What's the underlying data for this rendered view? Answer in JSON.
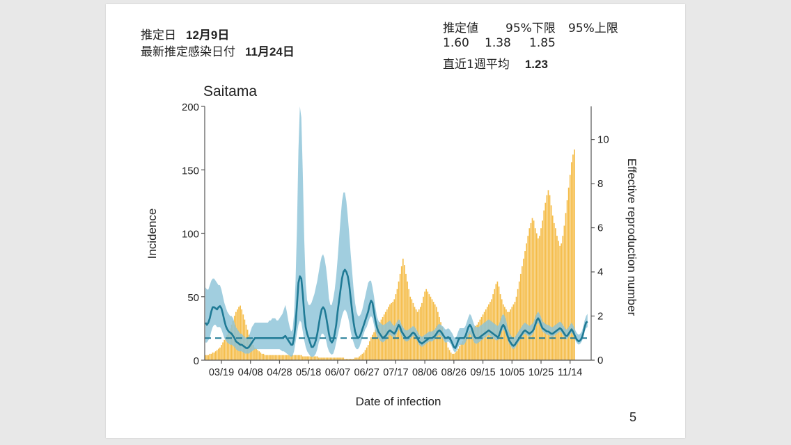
{
  "header": {
    "estimate_date_label": "推定日",
    "estimate_date_value": "12月9日",
    "latest_infection_label": "最新推定感染日付",
    "latest_infection_value": "11月24日"
  },
  "estimate": {
    "col_value": "推定値",
    "col_lower": "95%下限",
    "col_upper": "95%上限",
    "value": "1.60",
    "lower": "1.38",
    "upper": "1.85",
    "week_avg_label": "直近1週平均",
    "week_avg_value": "1.23"
  },
  "page_number": "5",
  "colors": {
    "bars": "#f5bd4a",
    "band": "#8cc3d8",
    "band_inner": "#5a9aa6",
    "line": "#1f7a95",
    "ref_line": "#1f7a95"
  },
  "chart_data": {
    "type": "bar+line",
    "title": "Saitama",
    "xlabel": "Date of infection",
    "ylabel": "Incidence",
    "ylabel_right": "Effective reproduction number",
    "ylim": [
      0,
      200
    ],
    "ylim_right": [
      0,
      11.5
    ],
    "yticks": [
      "0",
      "50",
      "100",
      "150",
      "200"
    ],
    "yticks_right": [
      "0",
      "2",
      "4",
      "6",
      "8",
      "10"
    ],
    "x_tick_labels": [
      "03/19",
      "04/08",
      "04/28",
      "05/18",
      "06/07",
      "06/27",
      "07/17",
      "08/06",
      "08/26",
      "09/15",
      "10/05",
      "10/25",
      "11/14"
    ],
    "x_tick_days": [
      11,
      31,
      51,
      71,
      91,
      111,
      131,
      151,
      171,
      191,
      211,
      231,
      251
    ],
    "n_days": 266,
    "reference_line_rt": 1.0,
    "incidence": [
      4,
      4,
      4,
      5,
      5,
      6,
      6,
      7,
      8,
      9,
      10,
      12,
      14,
      16,
      18,
      20,
      22,
      25,
      28,
      31,
      35,
      38,
      40,
      42,
      43,
      40,
      36,
      32,
      28,
      24,
      20,
      17,
      14,
      12,
      10,
      9,
      8,
      7,
      6,
      5,
      5,
      4,
      4,
      4,
      4,
      4,
      4,
      4,
      4,
      4,
      4,
      4,
      4,
      4,
      4,
      4,
      4,
      4,
      4,
      4,
      4,
      4,
      4,
      4,
      4,
      4,
      4,
      3,
      3,
      3,
      3,
      3,
      3,
      3,
      3,
      3,
      3,
      3,
      2,
      2,
      2,
      2,
      2,
      2,
      2,
      2,
      2,
      2,
      2,
      2,
      2,
      2,
      2,
      2,
      2,
      2,
      1,
      1,
      1,
      1,
      1,
      1,
      1,
      2,
      2,
      2,
      3,
      4,
      5,
      6,
      8,
      10,
      12,
      15,
      18,
      20,
      22,
      24,
      26,
      28,
      30,
      32,
      34,
      36,
      38,
      40,
      42,
      44,
      45,
      46,
      48,
      52,
      56,
      62,
      68,
      74,
      80,
      75,
      68,
      62,
      56,
      50,
      48,
      45,
      42,
      40,
      38,
      40,
      42,
      45,
      50,
      54,
      56,
      54,
      52,
      50,
      48,
      46,
      44,
      42,
      38,
      34,
      30,
      26,
      22,
      18,
      14,
      10,
      8,
      6,
      5,
      5,
      6,
      7,
      9,
      11,
      13,
      15,
      17,
      19,
      21,
      22,
      23,
      24,
      25,
      26,
      27,
      28,
      30,
      32,
      34,
      36,
      38,
      40,
      42,
      44,
      46,
      48,
      52,
      56,
      60,
      62,
      58,
      52,
      48,
      44,
      42,
      40,
      38,
      38,
      40,
      42,
      44,
      46,
      50,
      56,
      62,
      68,
      74,
      80,
      86,
      92,
      98,
      104,
      108,
      112,
      110,
      104,
      100,
      96,
      98,
      104,
      110,
      118,
      124,
      130,
      134,
      130,
      122,
      114,
      108,
      104,
      98,
      94,
      90,
      92,
      98,
      106,
      116,
      126,
      136,
      146,
      156,
      162,
      166
    ],
    "rt_median": [
      1.7,
      1.6,
      1.7,
      1.9,
      2.2,
      2.4,
      2.4,
      2.35,
      2.3,
      2.4,
      2.45,
      2.35,
      2.1,
      1.8,
      1.55,
      1.4,
      1.3,
      1.25,
      1.2,
      1.1,
      1.0,
      0.85,
      0.8,
      0.75,
      0.7,
      0.7,
      0.65,
      0.6,
      0.55,
      0.55,
      0.6,
      0.7,
      0.8,
      0.9,
      1.0,
      1.0,
      1.0,
      1.0,
      1.0,
      1.0,
      1.0,
      1.0,
      1.0,
      1.0,
      1.0,
      1.0,
      1.0,
      1.0,
      1.0,
      1.0,
      1.0,
      1.0,
      1.0,
      1.0,
      1.05,
      1.1,
      1.0,
      0.9,
      0.8,
      0.7,
      0.7,
      1.0,
      1.6,
      2.5,
      3.5,
      3.8,
      3.7,
      3.0,
      2.1,
      1.5,
      1.2,
      1.0,
      0.8,
      0.6,
      0.6,
      0.7,
      0.9,
      1.2,
      1.6,
      2.0,
      2.3,
      2.4,
      2.3,
      2.0,
      1.6,
      1.2,
      0.9,
      0.8,
      0.9,
      1.2,
      1.6,
      2.2,
      2.7,
      3.2,
      3.7,
      4.0,
      4.1,
      4.0,
      3.8,
      3.4,
      2.8,
      2.2,
      1.7,
      1.3,
      1.1,
      1.0,
      1.05,
      1.2,
      1.4,
      1.6,
      1.8,
      2.0,
      2.2,
      2.5,
      2.7,
      2.6,
      2.2,
      1.8,
      1.5,
      1.3,
      1.2,
      1.1,
      1.0,
      1.05,
      1.1,
      1.2,
      1.3,
      1.35,
      1.3,
      1.25,
      1.2,
      1.3,
      1.45,
      1.6,
      1.5,
      1.3,
      1.2,
      1.1,
      1.0,
      1.0,
      1.05,
      1.1,
      1.2,
      1.25,
      1.2,
      1.1,
      1.0,
      0.85,
      0.8,
      0.75,
      0.8,
      0.85,
      0.9,
      0.95,
      1.0,
      1.0,
      1.0,
      1.05,
      1.1,
      1.2,
      1.3,
      1.35,
      1.3,
      1.2,
      1.1,
      1.0,
      1.0,
      1.05,
      1.0,
      0.9,
      0.75,
      0.6,
      0.55,
      0.7,
      0.9,
      1.0,
      1.0,
      1.0,
      1.0,
      1.1,
      1.3,
      1.5,
      1.6,
      1.5,
      1.3,
      1.1,
      1.0,
      1.0,
      1.0,
      1.05,
      1.1,
      1.15,
      1.2,
      1.25,
      1.3,
      1.35,
      1.3,
      1.25,
      1.2,
      1.15,
      1.1,
      1.05,
      1.1,
      1.3,
      1.5,
      1.6,
      1.5,
      1.3,
      1.1,
      0.9,
      0.8,
      0.7,
      0.65,
      0.7,
      0.8,
      0.9,
      1.0,
      1.1,
      1.2,
      1.3,
      1.35,
      1.3,
      1.25,
      1.2,
      1.25,
      1.3,
      1.4,
      1.6,
      1.8,
      1.9,
      1.8,
      1.6,
      1.45,
      1.4,
      1.35,
      1.3,
      1.3,
      1.25,
      1.2,
      1.2,
      1.25,
      1.3,
      1.35,
      1.4,
      1.45,
      1.4,
      1.3,
      1.2,
      1.1,
      1.1,
      1.2,
      1.3,
      1.4,
      1.3,
      1.15,
      1.0,
      0.9,
      0.85,
      0.9,
      1.0,
      1.2,
      1.5,
      1.7,
      1.75
    ],
    "rt_lower": [
      0.8,
      0.8,
      0.9,
      1.0,
      1.3,
      1.5,
      1.6,
      1.6,
      1.5,
      1.5,
      1.5,
      1.4,
      1.2,
      1.0,
      0.9,
      0.8,
      0.75,
      0.7,
      0.7,
      0.65,
      0.6,
      0.5,
      0.45,
      0.4,
      0.4,
      0.4,
      0.35,
      0.3,
      0.3,
      0.3,
      0.3,
      0.35,
      0.4,
      0.45,
      0.5,
      0.5,
      0.5,
      0.5,
      0.5,
      0.5,
      0.5,
      0.5,
      0.5,
      0.5,
      0.5,
      0.5,
      0.5,
      0.5,
      0.5,
      0.5,
      0.5,
      0.5,
      0.45,
      0.4,
      0.4,
      0.35,
      0.3,
      0.25,
      0.2,
      0.15,
      0.2,
      0.4,
      0.8,
      1.2,
      1.6,
      1.8,
      1.7,
      1.3,
      0.9,
      0.6,
      0.4,
      0.3,
      0.2,
      0.15,
      0.15,
      0.2,
      0.3,
      0.5,
      0.8,
      1.0,
      1.2,
      1.2,
      1.1,
      0.9,
      0.6,
      0.4,
      0.3,
      0.25,
      0.3,
      0.5,
      0.8,
      1.1,
      1.4,
      1.7,
      2.0,
      2.2,
      2.3,
      2.2,
      2.0,
      1.7,
      1.3,
      1.0,
      0.8,
      0.6,
      0.5,
      0.5,
      0.6,
      0.8,
      1.0,
      1.2,
      1.4,
      1.5,
      1.7,
      1.9,
      2.0,
      1.9,
      1.6,
      1.3,
      1.1,
      1.0,
      0.9,
      0.85,
      0.8,
      0.85,
      0.9,
      1.0,
      1.1,
      1.15,
      1.1,
      1.05,
      1.0,
      1.1,
      1.25,
      1.4,
      1.3,
      1.1,
      1.0,
      0.9,
      0.85,
      0.85,
      0.9,
      0.95,
      1.05,
      1.1,
      1.05,
      0.95,
      0.85,
      0.7,
      0.65,
      0.6,
      0.65,
      0.7,
      0.75,
      0.8,
      0.85,
      0.85,
      0.85,
      0.9,
      0.95,
      1.05,
      1.1,
      1.15,
      1.1,
      1.0,
      0.9,
      0.8,
      0.8,
      0.85,
      0.8,
      0.7,
      0.55,
      0.4,
      0.35,
      0.45,
      0.6,
      0.7,
      0.7,
      0.7,
      0.7,
      0.8,
      0.95,
      1.1,
      1.2,
      1.1,
      0.95,
      0.8,
      0.75,
      0.75,
      0.8,
      0.85,
      0.9,
      0.95,
      1.0,
      1.05,
      1.1,
      1.15,
      1.1,
      1.05,
      1.0,
      0.95,
      0.9,
      0.9,
      0.95,
      1.1,
      1.3,
      1.4,
      1.3,
      1.1,
      0.95,
      0.75,
      0.65,
      0.55,
      0.5,
      0.55,
      0.65,
      0.75,
      0.85,
      0.95,
      1.05,
      1.15,
      1.2,
      1.15,
      1.1,
      1.05,
      1.1,
      1.15,
      1.25,
      1.45,
      1.6,
      1.7,
      1.6,
      1.45,
      1.3,
      1.25,
      1.2,
      1.15,
      1.15,
      1.1,
      1.05,
      1.05,
      1.1,
      1.15,
      1.2,
      1.25,
      1.3,
      1.25,
      1.15,
      1.05,
      0.95,
      0.95,
      1.05,
      1.15,
      1.25,
      1.15,
      1.0,
      0.85,
      0.75,
      0.7,
      0.75,
      0.85,
      1.0,
      1.3,
      1.45,
      1.5
    ],
    "rt_upper": [
      3.3,
      3.2,
      3.2,
      3.4,
      3.6,
      3.7,
      3.7,
      3.6,
      3.5,
      3.4,
      3.4,
      3.2,
      2.9,
      2.6,
      2.4,
      2.2,
      2.1,
      2.0,
      2.0,
      1.9,
      1.7,
      1.5,
      1.4,
      1.3,
      1.2,
      1.2,
      1.1,
      1.05,
      1.0,
      1.0,
      1.1,
      1.3,
      1.5,
      1.6,
      1.7,
      1.7,
      1.7,
      1.7,
      1.7,
      1.7,
      1.7,
      1.7,
      1.7,
      1.7,
      1.8,
      1.8,
      1.9,
      1.9,
      1.9,
      1.8,
      1.8,
      1.9,
      2.0,
      2.1,
      2.3,
      2.5,
      2.2,
      1.8,
      1.5,
      1.3,
      1.4,
      2.1,
      3.5,
      6.0,
      9.5,
      11.5,
      11.0,
      8.5,
      5.5,
      3.5,
      2.7,
      2.5,
      2.5,
      2.6,
      2.8,
      3.0,
      3.3,
      3.6,
      4.0,
      4.4,
      4.7,
      4.8,
      4.6,
      4.2,
      3.6,
      2.8,
      2.5,
      2.5,
      2.8,
      3.2,
      3.8,
      4.6,
      5.5,
      6.4,
      7.2,
      7.6,
      7.6,
      7.2,
      6.5,
      5.7,
      4.8,
      4.0,
      3.2,
      2.6,
      2.2,
      2.0,
      2.0,
      2.1,
      2.3,
      2.6,
      2.9,
      3.2,
      3.5,
      3.6,
      3.6,
      3.3,
      2.9,
      2.4,
      2.0,
      1.8,
      1.7,
      1.65,
      1.6,
      1.6,
      1.65,
      1.7,
      1.75,
      1.8,
      1.7,
      1.6,
      1.55,
      1.65,
      1.75,
      1.85,
      1.8,
      1.6,
      1.5,
      1.4,
      1.35,
      1.35,
      1.4,
      1.45,
      1.5,
      1.55,
      1.5,
      1.4,
      1.3,
      1.15,
      1.1,
      1.05,
      1.1,
      1.15,
      1.2,
      1.25,
      1.3,
      1.3,
      1.3,
      1.35,
      1.4,
      1.5,
      1.6,
      1.65,
      1.6,
      1.55,
      1.5,
      1.4,
      1.4,
      1.45,
      1.4,
      1.3,
      1.2,
      1.05,
      1.0,
      1.1,
      1.3,
      1.45,
      1.45,
      1.45,
      1.45,
      1.55,
      1.75,
      1.95,
      2.1,
      2.0,
      1.8,
      1.6,
      1.5,
      1.5,
      1.5,
      1.55,
      1.6,
      1.65,
      1.7,
      1.75,
      1.8,
      1.85,
      1.8,
      1.75,
      1.7,
      1.65,
      1.6,
      1.55,
      1.6,
      1.8,
      2.0,
      2.1,
      2.0,
      1.8,
      1.5,
      1.3,
      1.15,
      1.05,
      1.0,
      1.05,
      1.15,
      1.25,
      1.35,
      1.45,
      1.55,
      1.65,
      1.7,
      1.65,
      1.6,
      1.55,
      1.6,
      1.65,
      1.75,
      1.95,
      2.1,
      2.2,
      2.1,
      1.95,
      1.75,
      1.7,
      1.65,
      1.6,
      1.6,
      1.55,
      1.5,
      1.5,
      1.55,
      1.6,
      1.65,
      1.7,
      1.75,
      1.7,
      1.6,
      1.5,
      1.4,
      1.4,
      1.5,
      1.6,
      1.7,
      1.6,
      1.45,
      1.3,
      1.2,
      1.15,
      1.2,
      1.3,
      1.5,
      1.8,
      2.0,
      2.1
    ]
  }
}
